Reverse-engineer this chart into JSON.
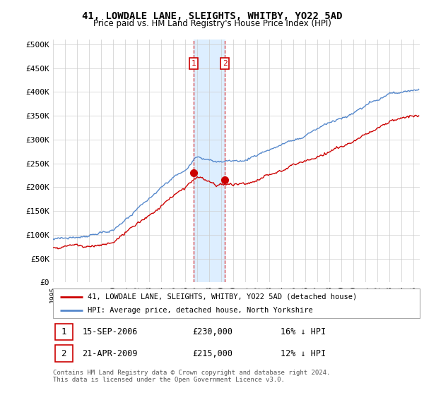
{
  "title": "41, LOWDALE LANE, SLEIGHTS, WHITBY, YO22 5AD",
  "subtitle": "Price paid vs. HM Land Registry's House Price Index (HPI)",
  "legend_line1": "41, LOWDALE LANE, SLEIGHTS, WHITBY, YO22 5AD (detached house)",
  "legend_line2": "HPI: Average price, detached house, North Yorkshire",
  "transaction1_date": "15-SEP-2006",
  "transaction1_price": 230000,
  "transaction1_pct": "16%",
  "transaction1_dir": "↓",
  "transaction2_date": "21-APR-2009",
  "transaction2_price": 215000,
  "transaction2_pct": "12%",
  "transaction2_dir": "↓",
  "footer": "Contains HM Land Registry data © Crown copyright and database right 2024.\nThis data is licensed under the Open Government Licence v3.0.",
  "hpi_color": "#5588cc",
  "price_color": "#cc0000",
  "highlight_color": "#ddeeff",
  "ylabel_ticks": [
    "£0",
    "£50K",
    "£100K",
    "£150K",
    "£200K",
    "£250K",
    "£300K",
    "£350K",
    "£400K",
    "£450K",
    "£500K"
  ],
  "ylabel_values": [
    0,
    50000,
    100000,
    150000,
    200000,
    250000,
    300000,
    350000,
    400000,
    450000,
    500000
  ],
  "x_start_year": 1995,
  "x_end_year": 2025
}
